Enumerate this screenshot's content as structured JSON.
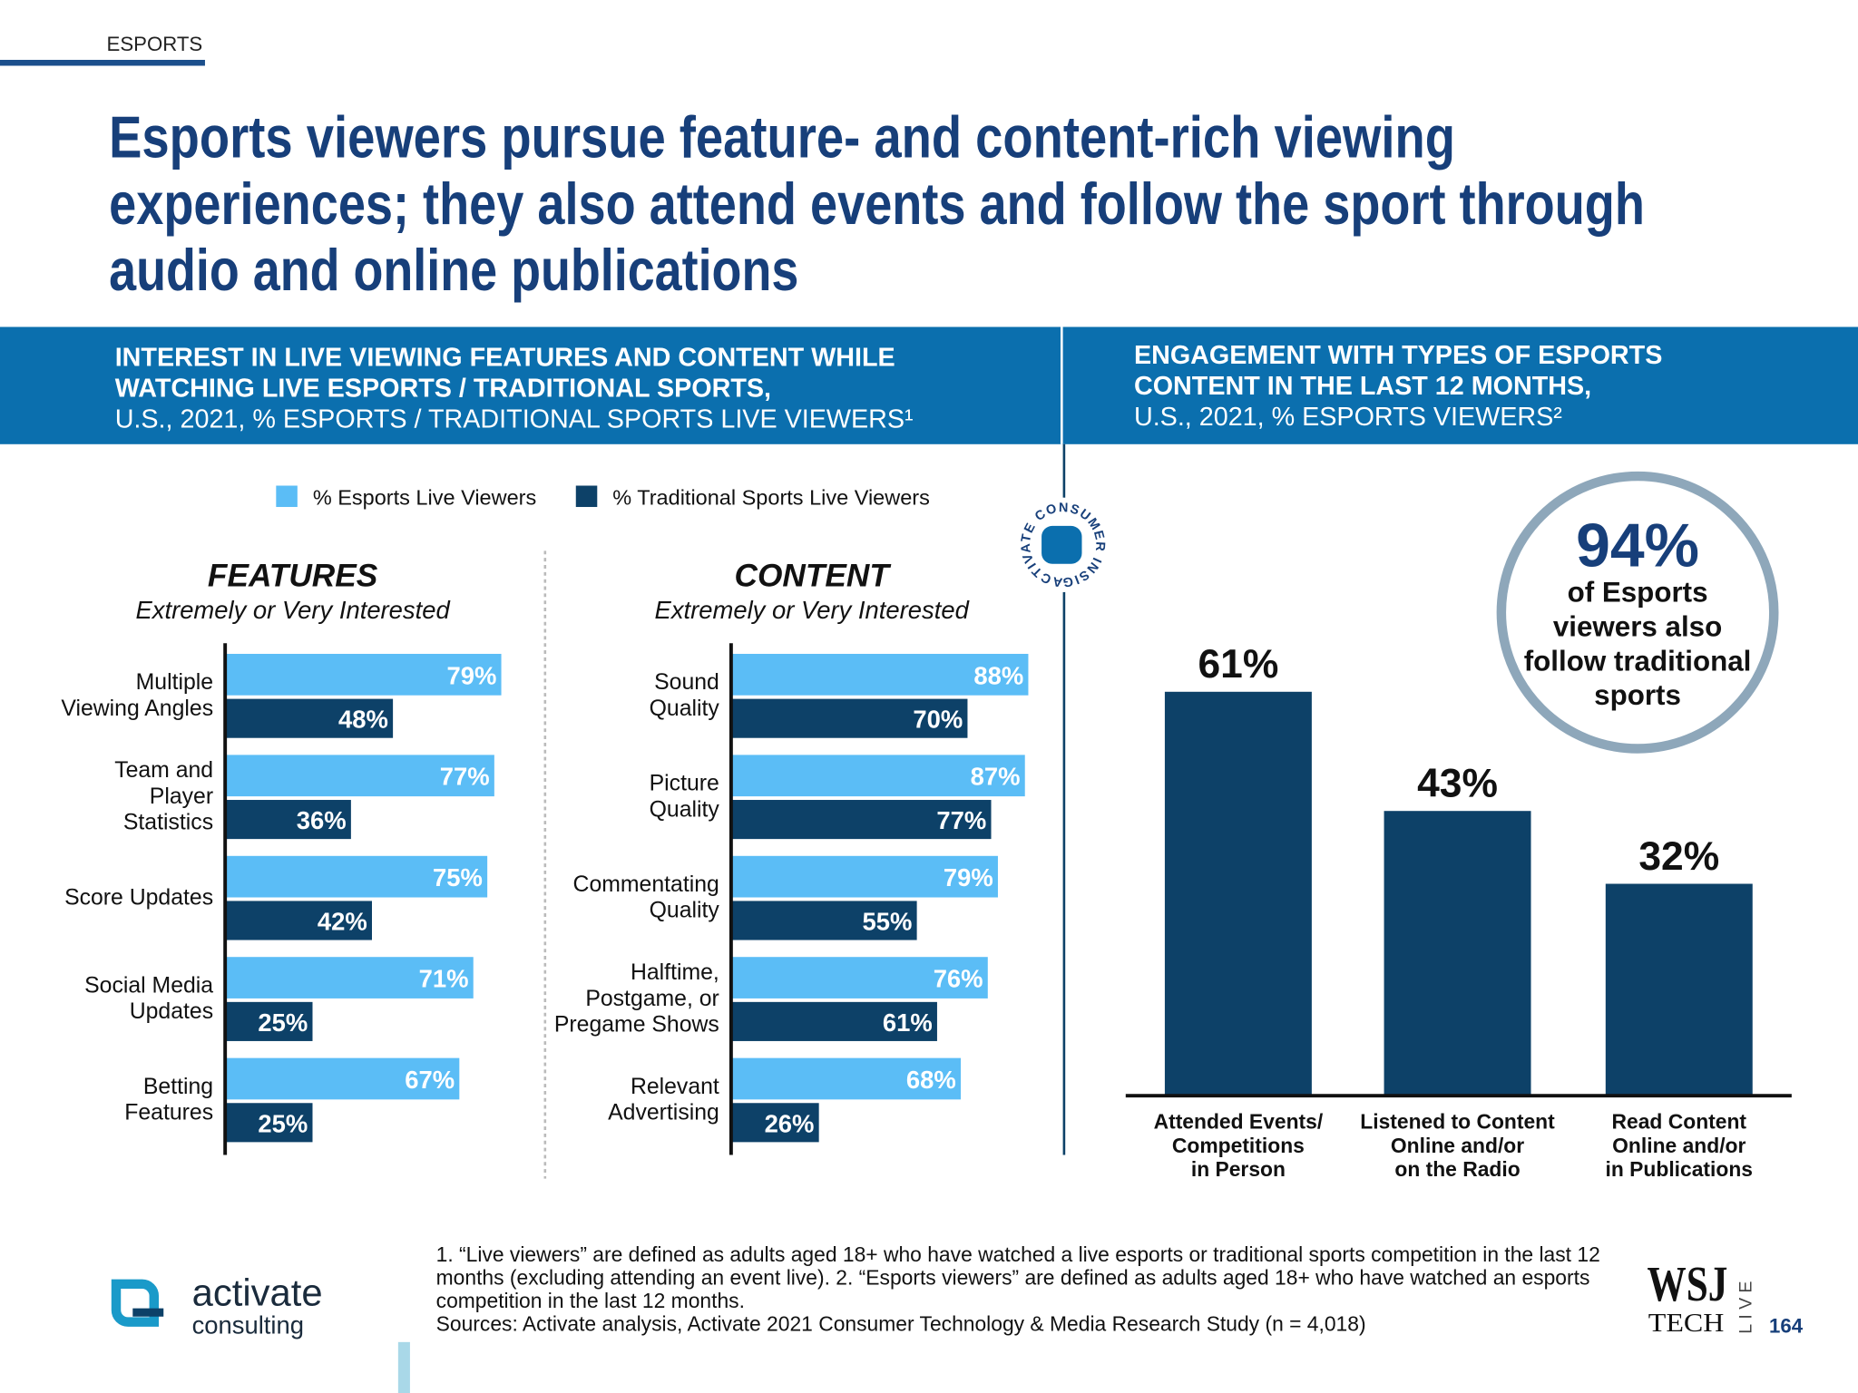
{
  "header": {
    "section": "ESPORTS",
    "title_lines": [
      "Esports viewers pursue feature- and content-rich viewing",
      "experiences; they also attend events and follow the sport through",
      "audio and online publications"
    ]
  },
  "left_heading": [
    "INTEREST IN LIVE VIEWING FEATURES AND CONTENT WHILE",
    "WATCHING LIVE ESPORTS / TRADITIONAL SPORTS,",
    "U.S., 2021, % ESPORTS / TRADITIONAL SPORTS LIVE VIEWERS¹"
  ],
  "right_heading": [
    "ENGAGEMENT WITH TYPES OF ESPORTS",
    "CONTENT IN THE LAST 12 MONTHS,",
    "U.S., 2021, % ESPORTS VIEWERS²"
  ],
  "stamp": "ACTIVATE CONSUMER INSIGHT",
  "chart_data": [
    {
      "type": "barh",
      "title": "FEATURES",
      "subtitle": "Extremely or Very Interested",
      "categories": [
        "Multiple\nViewing Angles",
        "Team and\nPlayer\nStatistics",
        "Score Updates",
        "Social Media\nUpdates",
        "Betting\nFeatures"
      ],
      "series": [
        {
          "name": "% Esports Live Viewers",
          "color": "#5bbdf6",
          "values": [
            79,
            77,
            75,
            71,
            67
          ],
          "value_labels": [
            "79%",
            "77%",
            "75%",
            "71%",
            "67%"
          ]
        },
        {
          "name": "% Traditional Sports Live Viewers",
          "color": "#0d4168",
          "values": [
            48,
            36,
            42,
            25,
            25
          ],
          "value_labels": [
            "48%",
            "36%",
            "42%",
            "25%",
            "25%"
          ]
        }
      ]
    },
    {
      "type": "barh",
      "title": "CONTENT",
      "subtitle": "Extremely or Very Interested",
      "categories": [
        "Sound\nQuality",
        "Picture\nQuality",
        "Commentating\nQuality",
        "Halftime,\nPostgame, or\nPregame Shows",
        "Relevant\nAdvertising"
      ],
      "series": [
        {
          "color": "#5bbdf6",
          "values": [
            88,
            87,
            79,
            76,
            68
          ],
          "value_labels": [
            "88%",
            "87%",
            "79%",
            "76%",
            "68%"
          ]
        },
        {
          "color": "#0d4168",
          "values": [
            70,
            77,
            55,
            61,
            26
          ],
          "value_labels": [
            "70%",
            "77%",
            "55%",
            "61%",
            "26%"
          ]
        }
      ]
    },
    {
      "type": "bar",
      "categories": [
        "Attended Events/\nCompetitions\nin Person",
        "Listened to Content\nOnline and/or\non the Radio",
        "Read Content\nOnline and/or\nin Publications"
      ],
      "values": [
        61,
        43,
        32
      ],
      "value_labels": [
        "61%",
        "43%",
        "32%"
      ],
      "color": "#0d4168"
    }
  ],
  "callout": {
    "value_label": "94%",
    "text": "of Esports\nviewers also\nfollow traditional\nsports"
  },
  "footnotes": [
    "1. “Live viewers” are defined as adults aged 18+ who have watched a live esports or traditional sports competition in the last 12",
    "months (excluding attending an event live).  2. “Esports viewers” are defined as adults aged 18+ who have watched an esports",
    "competition in the last 12 months.",
    "Sources: Activate analysis, Activate 2021 Consumer Technology & Media Research Study (n = 4,018)"
  ],
  "logo": {
    "name": "activate",
    "sub": "consulting"
  },
  "wsj": {
    "top": "WSJ",
    "bottom": "TECH",
    "side": "LIVE"
  },
  "page_number": "164"
}
